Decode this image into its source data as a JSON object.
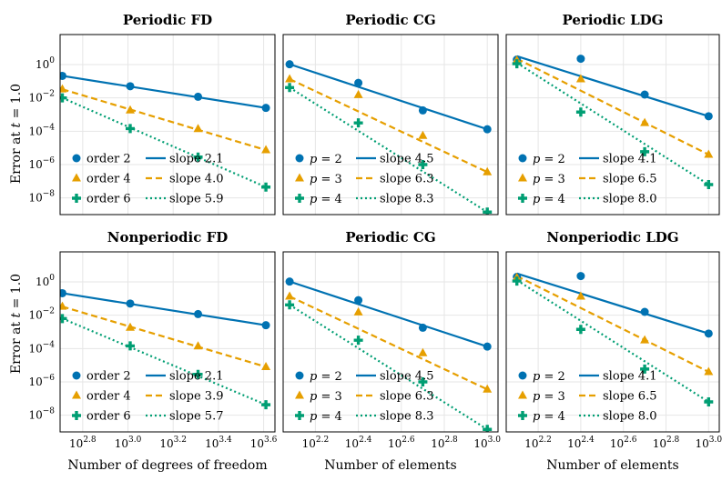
{
  "figure": {
    "y_axis_label": "Error at t = 1.0",
    "y_axis_label_plain": "Error at ",
    "y_axis_label_var": "t",
    "y_axis_label_tail": " = 1.0"
  },
  "chart_data": [
    {
      "type": "scatter",
      "title": "Periodic FD",
      "xlabel": "",
      "ylabel": "Error at t = 1.0",
      "xscale": "log10",
      "yscale": "log10",
      "xlim_log10": [
        2.7,
        3.65
      ],
      "ylim_log10": [
        -9.0,
        1.8
      ],
      "x_ticks_log10": [],
      "y_ticks_log10": [
        -8,
        -6,
        -4,
        -2,
        0
      ],
      "grid": true,
      "legend_position": "bottom-left",
      "series": [
        {
          "name": "order 2",
          "marker": "circle",
          "color": "#0072b2",
          "x_log10": [
            2.71,
            3.01,
            3.31,
            3.61
          ],
          "y_log10": [
            -0.68,
            -1.3,
            -1.93,
            -2.6
          ]
        },
        {
          "name": "order 4",
          "marker": "triangle",
          "color": "#e69f00",
          "x_log10": [
            2.71,
            3.01,
            3.31,
            3.61
          ],
          "y_log10": [
            -1.48,
            -2.74,
            -3.86,
            -5.13
          ]
        },
        {
          "name": "order 6",
          "marker": "cross",
          "color": "#009e73",
          "x_log10": [
            2.71,
            3.01,
            3.31,
            3.61
          ],
          "y_log10": [
            -2.0,
            -3.84,
            -5.55,
            -7.35
          ]
        }
      ],
      "fits": [
        {
          "name": "slope 2.1",
          "style": "solid",
          "color": "#0072b2",
          "x_log10": [
            2.71,
            3.61
          ],
          "y_log10": [
            -0.68,
            -2.6
          ]
        },
        {
          "name": "slope 4.0",
          "style": "dashed",
          "color": "#e69f00",
          "x_log10": [
            2.71,
            3.61
          ],
          "y_log10": [
            -1.48,
            -5.13
          ]
        },
        {
          "name": "slope 5.9",
          "style": "dotted",
          "color": "#009e73",
          "x_log10": [
            2.71,
            3.61
          ],
          "y_log10": [
            -2.0,
            -7.35
          ]
        }
      ]
    },
    {
      "type": "scatter",
      "title": "Periodic CG",
      "xlabel": "",
      "xscale": "log10",
      "yscale": "log10",
      "xlim_log10": [
        2.05,
        3.05
      ],
      "ylim_log10": [
        -9.0,
        1.8
      ],
      "x_ticks_log10": [],
      "y_ticks_log10": [],
      "grid": true,
      "legend_position": "bottom-left",
      "series": [
        {
          "name": "p = 2",
          "marker": "circle",
          "color": "#0072b2",
          "x_log10": [
            2.08,
            2.4,
            2.7,
            3.0
          ],
          "y_log10": [
            0.02,
            -1.1,
            -2.75,
            -3.88
          ]
        },
        {
          "name": "p = 3",
          "marker": "triangle",
          "color": "#e69f00",
          "x_log10": [
            2.08,
            2.4,
            2.7,
            3.0
          ],
          "y_log10": [
            -0.87,
            -1.82,
            -4.27,
            -6.45
          ]
        },
        {
          "name": "p = 4",
          "marker": "cross",
          "color": "#009e73",
          "x_log10": [
            2.08,
            2.4,
            2.7,
            3.0
          ],
          "y_log10": [
            -1.38,
            -3.5,
            -6.0,
            -8.85
          ]
        }
      ],
      "fits": [
        {
          "name": "slope 4.5",
          "style": "solid",
          "color": "#0072b2",
          "x_log10": [
            2.08,
            3.0
          ],
          "y_log10": [
            0.02,
            -3.88
          ]
        },
        {
          "name": "slope 6.3",
          "style": "dashed",
          "color": "#e69f00",
          "x_log10": [
            2.08,
            3.0
          ],
          "y_log10": [
            -0.87,
            -6.45
          ]
        },
        {
          "name": "slope 8.3",
          "style": "dotted",
          "color": "#009e73",
          "x_log10": [
            2.08,
            3.0
          ],
          "y_log10": [
            -1.38,
            -8.85
          ]
        }
      ]
    },
    {
      "type": "scatter",
      "title": "Periodic LDG",
      "xlabel": "",
      "xscale": "log10",
      "yscale": "log10",
      "xlim_log10": [
        2.05,
        3.05
      ],
      "ylim_log10": [
        -9.0,
        1.8
      ],
      "x_ticks_log10": [],
      "y_ticks_log10": [],
      "grid": true,
      "legend_position": "bottom-left",
      "series": [
        {
          "name": "p = 2",
          "marker": "circle",
          "color": "#0072b2",
          "x_log10": [
            2.1,
            2.4,
            2.7,
            3.0
          ],
          "y_log10": [
            0.3,
            0.35,
            -1.8,
            -3.1
          ]
        },
        {
          "name": "p = 3",
          "marker": "triangle",
          "color": "#e69f00",
          "x_log10": [
            2.1,
            2.4,
            2.7,
            3.0
          ],
          "y_log10": [
            0.25,
            -0.87,
            -3.5,
            -5.4
          ]
        },
        {
          "name": "p = 4",
          "marker": "cross",
          "color": "#009e73",
          "x_log10": [
            2.1,
            2.4,
            2.7,
            3.0
          ],
          "y_log10": [
            0.05,
            -2.85,
            -5.23,
            -7.2
          ]
        }
      ],
      "fits": [
        {
          "name": "slope 4.1",
          "style": "solid",
          "color": "#0072b2",
          "x_log10": [
            2.1,
            3.0
          ],
          "y_log10": [
            0.5,
            -3.1
          ]
        },
        {
          "name": "slope 6.5",
          "style": "dashed",
          "color": "#e69f00",
          "x_log10": [
            2.1,
            3.0
          ],
          "y_log10": [
            0.35,
            -5.4
          ]
        },
        {
          "name": "slope 8.0",
          "style": "dotted",
          "color": "#009e73",
          "x_log10": [
            2.1,
            3.0
          ],
          "y_log10": [
            0.1,
            -7.2
          ]
        }
      ]
    },
    {
      "type": "scatter",
      "title": "Nonperiodic FD",
      "xlabel": "Number of degrees of freedom",
      "ylabel": "Error at t = 1.0",
      "xscale": "log10",
      "yscale": "log10",
      "xlim_log10": [
        2.7,
        3.65
      ],
      "ylim_log10": [
        -9.0,
        1.8
      ],
      "x_ticks_log10": [
        2.8,
        3.0,
        3.2,
        3.4,
        3.6
      ],
      "y_ticks_log10": [
        -8,
        -6,
        -4,
        -2,
        0
      ],
      "grid": true,
      "legend_position": "bottom-left",
      "series": [
        {
          "name": "order 2",
          "marker": "circle",
          "color": "#0072b2",
          "x_log10": [
            2.71,
            3.01,
            3.31,
            3.61
          ],
          "y_log10": [
            -0.68,
            -1.3,
            -1.93,
            -2.6
          ]
        },
        {
          "name": "order 4",
          "marker": "triangle",
          "color": "#e69f00",
          "x_log10": [
            2.71,
            3.01,
            3.31,
            3.61
          ],
          "y_log10": [
            -1.48,
            -2.74,
            -3.86,
            -5.1
          ]
        },
        {
          "name": "order 6",
          "marker": "cross",
          "color": "#009e73",
          "x_log10": [
            2.71,
            3.01,
            3.31,
            3.61
          ],
          "y_log10": [
            -2.2,
            -3.84,
            -5.55,
            -7.37
          ]
        }
      ],
      "fits": [
        {
          "name": "slope 2.1",
          "style": "solid",
          "color": "#0072b2",
          "x_log10": [
            2.71,
            3.61
          ],
          "y_log10": [
            -0.68,
            -2.6
          ]
        },
        {
          "name": "slope 3.9",
          "style": "dashed",
          "color": "#e69f00",
          "x_log10": [
            2.71,
            3.61
          ],
          "y_log10": [
            -1.48,
            -5.1
          ]
        },
        {
          "name": "slope 5.7",
          "style": "dotted",
          "color": "#009e73",
          "x_log10": [
            2.71,
            3.61
          ],
          "y_log10": [
            -2.2,
            -7.37
          ]
        }
      ]
    },
    {
      "type": "scatter",
      "title": "Periodic CG",
      "xlabel": "Number of elements",
      "xscale": "log10",
      "yscale": "log10",
      "xlim_log10": [
        2.05,
        3.05
      ],
      "ylim_log10": [
        -9.0,
        1.8
      ],
      "x_ticks_log10": [
        2.2,
        2.4,
        2.6,
        2.8,
        3.0
      ],
      "y_ticks_log10": [],
      "grid": true,
      "legend_position": "bottom-left",
      "series": [
        {
          "name": "p = 2",
          "marker": "circle",
          "color": "#0072b2",
          "x_log10": [
            2.08,
            2.4,
            2.7,
            3.0
          ],
          "y_log10": [
            0.02,
            -1.1,
            -2.75,
            -3.88
          ]
        },
        {
          "name": "p = 3",
          "marker": "triangle",
          "color": "#e69f00",
          "x_log10": [
            2.08,
            2.4,
            2.7,
            3.0
          ],
          "y_log10": [
            -0.87,
            -1.82,
            -4.27,
            -6.45
          ]
        },
        {
          "name": "p = 4",
          "marker": "cross",
          "color": "#009e73",
          "x_log10": [
            2.08,
            2.4,
            2.7,
            3.0
          ],
          "y_log10": [
            -1.38,
            -3.5,
            -6.0,
            -8.85
          ]
        }
      ],
      "fits": [
        {
          "name": "slope 4.5",
          "style": "solid",
          "color": "#0072b2",
          "x_log10": [
            2.08,
            3.0
          ],
          "y_log10": [
            0.02,
            -3.88
          ]
        },
        {
          "name": "slope 6.3",
          "style": "dashed",
          "color": "#e69f00",
          "x_log10": [
            2.08,
            3.0
          ],
          "y_log10": [
            -0.87,
            -6.45
          ]
        },
        {
          "name": "slope 8.3",
          "style": "dotted",
          "color": "#009e73",
          "x_log10": [
            2.08,
            3.0
          ],
          "y_log10": [
            -1.38,
            -8.85
          ]
        }
      ]
    },
    {
      "type": "scatter",
      "title": "Nonperiodic LDG",
      "xlabel": "Number of elements",
      "xscale": "log10",
      "yscale": "log10",
      "xlim_log10": [
        2.05,
        3.05
      ],
      "ylim_log10": [
        -9.0,
        1.8
      ],
      "x_ticks_log10": [
        2.2,
        2.4,
        2.6,
        2.8,
        3.0
      ],
      "y_ticks_log10": [],
      "grid": true,
      "legend_position": "bottom-left",
      "series": [
        {
          "name": "p = 2",
          "marker": "circle",
          "color": "#0072b2",
          "x_log10": [
            2.1,
            2.4,
            2.7,
            3.0
          ],
          "y_log10": [
            0.3,
            0.35,
            -1.8,
            -3.1
          ]
        },
        {
          "name": "p = 3",
          "marker": "triangle",
          "color": "#e69f00",
          "x_log10": [
            2.1,
            2.4,
            2.7,
            3.0
          ],
          "y_log10": [
            0.25,
            -0.87,
            -3.5,
            -5.4
          ]
        },
        {
          "name": "p = 4",
          "marker": "cross",
          "color": "#009e73",
          "x_log10": [
            2.1,
            2.4,
            2.7,
            3.0
          ],
          "y_log10": [
            0.05,
            -2.85,
            -5.23,
            -7.2
          ]
        }
      ],
      "fits": [
        {
          "name": "slope 4.1",
          "style": "solid",
          "color": "#0072b2",
          "x_log10": [
            2.1,
            3.0
          ],
          "y_log10": [
            0.5,
            -3.1
          ]
        },
        {
          "name": "slope 6.5",
          "style": "dashed",
          "color": "#e69f00",
          "x_log10": [
            2.1,
            3.0
          ],
          "y_log10": [
            0.35,
            -5.4
          ]
        },
        {
          "name": "slope 8.0",
          "style": "dotted",
          "color": "#009e73",
          "x_log10": [
            2.1,
            3.0
          ],
          "y_log10": [
            0.1,
            -7.2
          ]
        }
      ]
    }
  ]
}
